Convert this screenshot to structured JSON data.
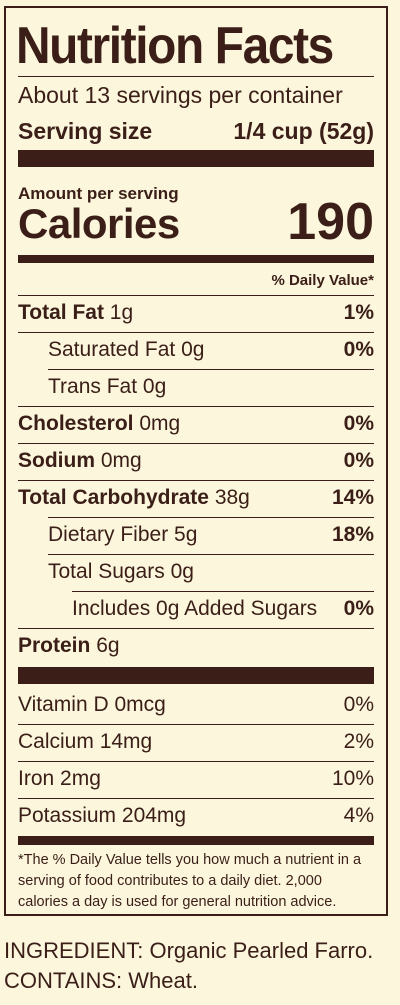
{
  "title": "Nutrition Facts",
  "servings_per_container": "About 13 servings per container",
  "serving_size": {
    "label": "Serving size",
    "value": "1/4 cup (52g)"
  },
  "amount_per_serving": "Amount per serving",
  "calories": {
    "label": "Calories",
    "value": "190"
  },
  "daily_value_header": "% Daily Value*",
  "nutrients": [
    {
      "name": "Total Fat",
      "amount": "1g",
      "dv": "1%"
    },
    {
      "name": "Saturated Fat",
      "amount": "0g",
      "dv": "0%"
    },
    {
      "name": "Trans Fat",
      "amount": "0g",
      "dv": ""
    },
    {
      "name": "Cholesterol",
      "amount": "0mg",
      "dv": "0%"
    },
    {
      "name": "Sodium",
      "amount": "0mg",
      "dv": "0%"
    },
    {
      "name": "Total Carbohydrate",
      "amount": "38g",
      "dv": "14%"
    },
    {
      "name": "Dietary Fiber",
      "amount": "5g",
      "dv": "18%"
    },
    {
      "name": "Total Sugars",
      "amount": "0g",
      "dv": ""
    },
    {
      "name": "Includes 0g Added Sugars",
      "amount": "",
      "dv": "0%"
    },
    {
      "name": "Protein",
      "amount": "6g",
      "dv": ""
    }
  ],
  "vitamins": [
    {
      "name": "Vitamin D",
      "amount": "0mcg",
      "dv": "0%"
    },
    {
      "name": "Calcium",
      "amount": "14mg",
      "dv": "2%"
    },
    {
      "name": "Iron",
      "amount": "2mg",
      "dv": "10%"
    },
    {
      "name": "Potassium",
      "amount": "204mg",
      "dv": "4%"
    }
  ],
  "footnote": "*The % Daily Value tells you how much a nutrient in a serving of food contributes to a daily diet. 2,000 calories a day is used for general nutrition advice.",
  "ingredients": "INGREDIENT: Organic Pearled Farro.",
  "contains": "CONTAINS: Wheat."
}
